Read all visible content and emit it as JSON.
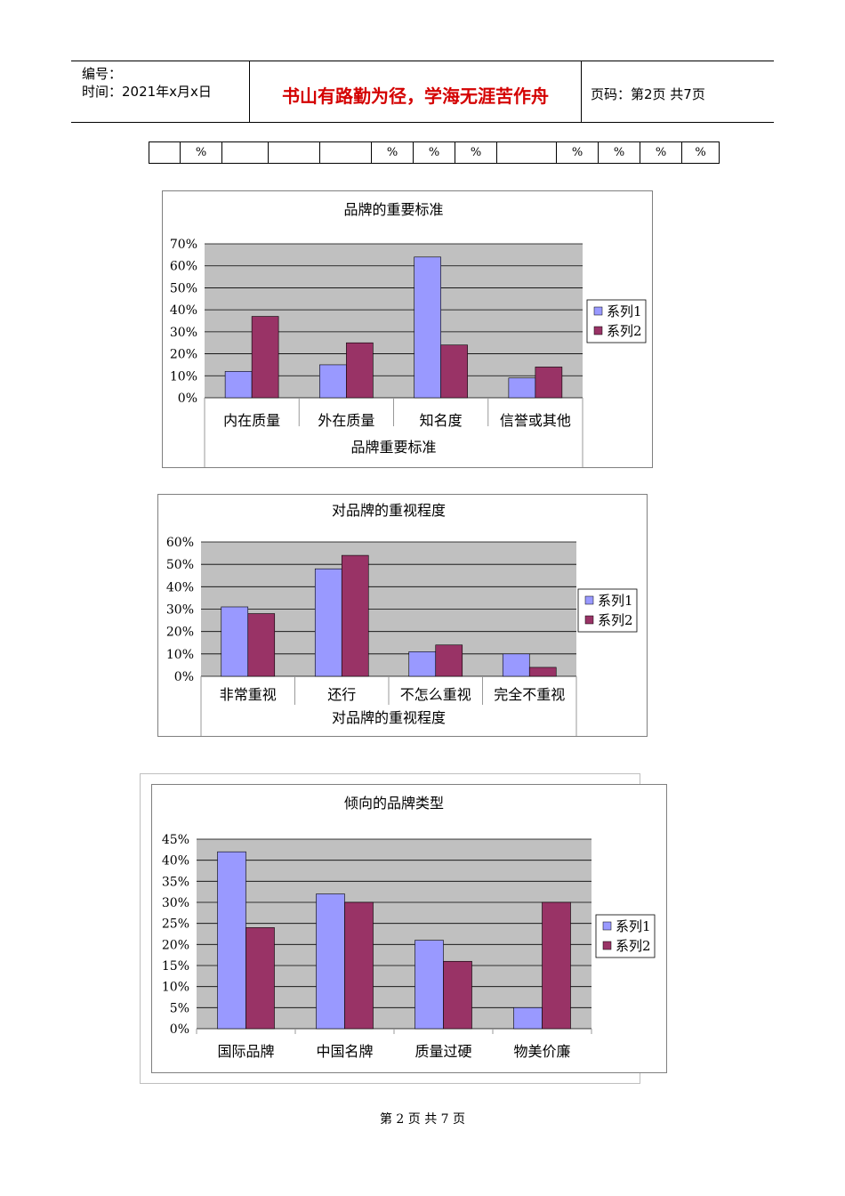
{
  "header": {
    "code_label": "编号：",
    "date_label": "时间：2021年x月x日",
    "motto": "书山有路勤为径，学海无涯苦作舟",
    "page_info": "页码：第2页  共7页"
  },
  "percent_row": [
    "",
    "%",
    "",
    "",
    "",
    "%",
    "%",
    "%",
    "",
    "%",
    "%",
    "%",
    "%"
  ],
  "footer": "第 2 页 共 7 页",
  "colors": {
    "series1": "#9999ff",
    "series2": "#993366",
    "plot_bg": "#c0c0c0",
    "grid": "#000000"
  },
  "chart_data": [
    {
      "type": "bar",
      "title": "品牌的重要标准",
      "xlabel": "品牌重要标准",
      "ylabel": "",
      "categories": [
        "内在质量",
        "外在质量",
        "知名度",
        "信誉或其他"
      ],
      "yticks": [
        "0%",
        "10%",
        "20%",
        "30%",
        "40%",
        "50%",
        "60%",
        "70%"
      ],
      "ylim": [
        0,
        70
      ],
      "grid": true,
      "legend": "right",
      "series": [
        {
          "name": "系列1",
          "values": [
            12,
            15,
            64,
            9
          ]
        },
        {
          "name": "系列2",
          "values": [
            37,
            25,
            24,
            14
          ]
        }
      ]
    },
    {
      "type": "bar",
      "title": "对品牌的重视程度",
      "xlabel": "对品牌的重视程度",
      "ylabel": "",
      "categories": [
        "非常重视",
        "还行",
        "不怎么重视",
        "完全不重视"
      ],
      "yticks": [
        "0%",
        "10%",
        "20%",
        "30%",
        "40%",
        "50%",
        "60%"
      ],
      "ylim": [
        0,
        60
      ],
      "grid": true,
      "legend": "right",
      "series": [
        {
          "name": "系列1",
          "values": [
            31,
            48,
            11,
            10
          ]
        },
        {
          "name": "系列2",
          "values": [
            28,
            54,
            14,
            4
          ]
        }
      ]
    },
    {
      "type": "bar",
      "title": "倾向的品牌类型",
      "xlabel": "",
      "ylabel": "",
      "categories": [
        "国际品牌",
        "中国名牌",
        "质量过硬",
        "物美价廉"
      ],
      "yticks": [
        "0%",
        "5%",
        "10%",
        "15%",
        "20%",
        "25%",
        "30%",
        "35%",
        "40%",
        "45%"
      ],
      "ylim": [
        0,
        45
      ],
      "grid": true,
      "legend": "right",
      "series": [
        {
          "name": "系列1",
          "values": [
            42,
            32,
            21,
            5
          ]
        },
        {
          "name": "系列2",
          "values": [
            24,
            30,
            16,
            30
          ]
        }
      ]
    }
  ]
}
